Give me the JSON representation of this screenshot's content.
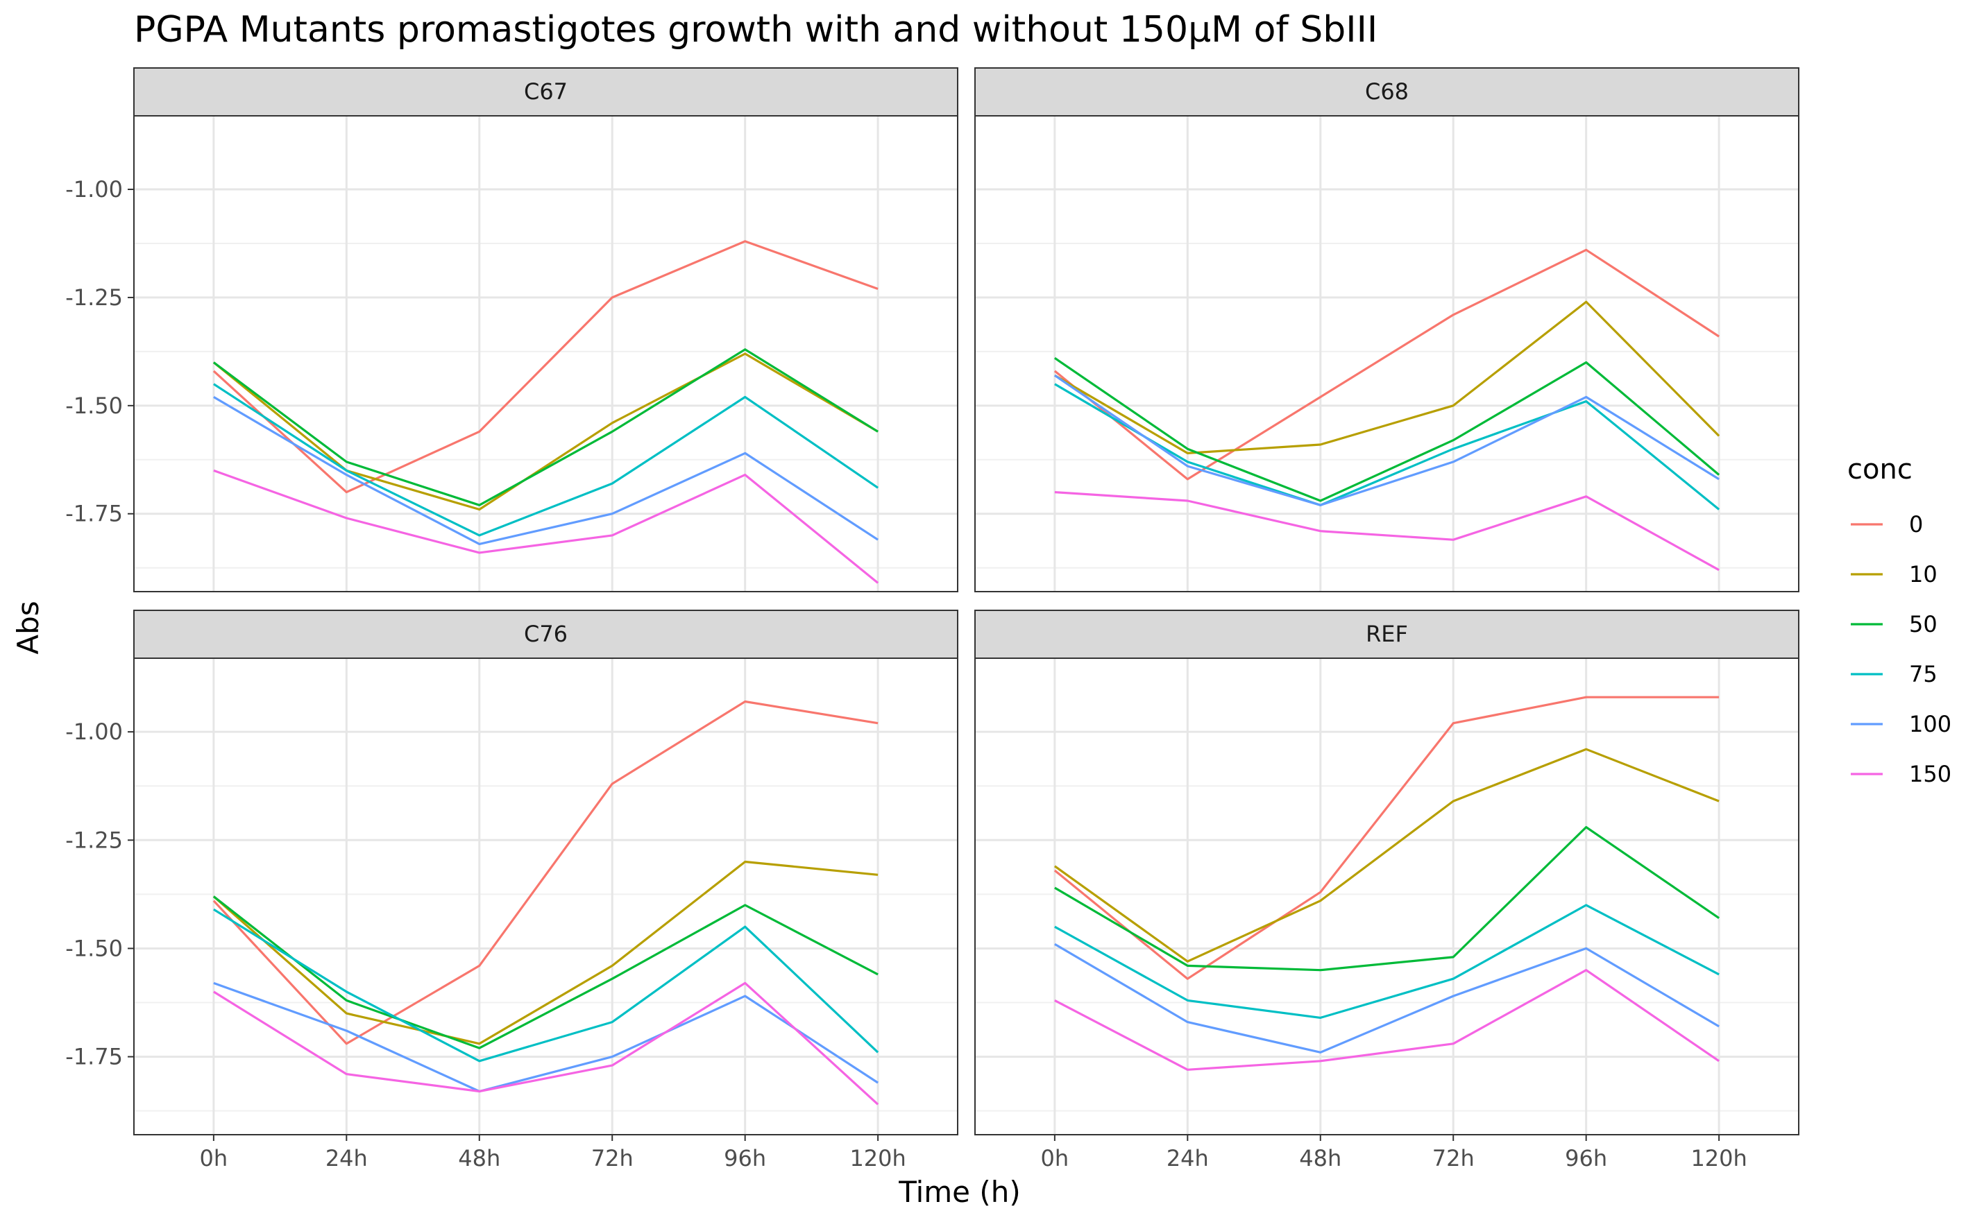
{
  "chart_data": {
    "type": "line",
    "title": "PGPA Mutants promastigotes growth with and without 150μM of SbIII",
    "xlabel": "Time (h)",
    "ylabel": "Abs",
    "x": [
      "0h",
      "24h",
      "48h",
      "72h",
      "96h",
      "120h"
    ],
    "ylim": [
      -1.93,
      -0.83
    ],
    "yticks": [
      -1.0,
      -1.25,
      -1.5,
      -1.75
    ],
    "ytick_labels": [
      "-1.00",
      "-1.25",
      "-1.50",
      "-1.75"
    ],
    "grid": true,
    "legend": {
      "title": "conc",
      "position": "right"
    },
    "series_meta": [
      {
        "name": "0",
        "color": "#F8766D"
      },
      {
        "name": "10",
        "color": "#B79F00"
      },
      {
        "name": "50",
        "color": "#00BA38"
      },
      {
        "name": "75",
        "color": "#00BFC4"
      },
      {
        "name": "100",
        "color": "#619CFF"
      },
      {
        "name": "150",
        "color": "#F564E3"
      }
    ],
    "panels": [
      {
        "name": "C67",
        "series": [
          {
            "name": "0",
            "values": [
              -1.42,
              -1.7,
              -1.56,
              -1.25,
              -1.12,
              -1.23
            ]
          },
          {
            "name": "10",
            "values": [
              -1.4,
              -1.65,
              -1.74,
              -1.54,
              -1.38,
              -1.56
            ]
          },
          {
            "name": "50",
            "values": [
              -1.4,
              -1.63,
              -1.73,
              -1.56,
              -1.37,
              -1.56
            ]
          },
          {
            "name": "75",
            "values": [
              -1.45,
              -1.65,
              -1.8,
              -1.68,
              -1.48,
              -1.69
            ]
          },
          {
            "name": "100",
            "values": [
              -1.48,
              -1.66,
              -1.82,
              -1.75,
              -1.61,
              -1.81
            ]
          },
          {
            "name": "150",
            "values": [
              -1.65,
              -1.76,
              -1.84,
              -1.8,
              -1.66,
              -1.91
            ]
          }
        ]
      },
      {
        "name": "C68",
        "series": [
          {
            "name": "0",
            "values": [
              -1.42,
              -1.67,
              -1.48,
              -1.29,
              -1.14,
              -1.34
            ]
          },
          {
            "name": "10",
            "values": [
              -1.43,
              -1.61,
              -1.59,
              -1.5,
              -1.26,
              -1.57
            ]
          },
          {
            "name": "50",
            "values": [
              -1.39,
              -1.6,
              -1.72,
              -1.58,
              -1.4,
              -1.66
            ]
          },
          {
            "name": "75",
            "values": [
              -1.45,
              -1.63,
              -1.73,
              -1.6,
              -1.49,
              -1.74
            ]
          },
          {
            "name": "100",
            "values": [
              -1.43,
              -1.64,
              -1.73,
              -1.63,
              -1.48,
              -1.67
            ]
          },
          {
            "name": "150",
            "values": [
              -1.7,
              -1.72,
              -1.79,
              -1.81,
              -1.71,
              -1.88
            ]
          }
        ]
      },
      {
        "name": "C76",
        "series": [
          {
            "name": "0",
            "values": [
              -1.39,
              -1.72,
              -1.54,
              -1.12,
              -0.93,
              -0.98
            ]
          },
          {
            "name": "10",
            "values": [
              -1.38,
              -1.65,
              -1.72,
              -1.54,
              -1.3,
              -1.33
            ]
          },
          {
            "name": "50",
            "values": [
              -1.38,
              -1.62,
              -1.73,
              -1.57,
              -1.4,
              -1.56
            ]
          },
          {
            "name": "75",
            "values": [
              -1.41,
              -1.6,
              -1.76,
              -1.67,
              -1.45,
              -1.74
            ]
          },
          {
            "name": "100",
            "values": [
              -1.58,
              -1.69,
              -1.83,
              -1.75,
              -1.61,
              -1.81
            ]
          },
          {
            "name": "150",
            "values": [
              -1.6,
              -1.79,
              -1.83,
              -1.77,
              -1.58,
              -1.86
            ]
          }
        ]
      },
      {
        "name": "REF",
        "series": [
          {
            "name": "0",
            "values": [
              -1.32,
              -1.57,
              -1.37,
              -0.98,
              -0.92,
              -0.92
            ]
          },
          {
            "name": "10",
            "values": [
              -1.31,
              -1.53,
              -1.39,
              -1.16,
              -1.04,
              -1.16
            ]
          },
          {
            "name": "50",
            "values": [
              -1.36,
              -1.54,
              -1.55,
              -1.52,
              -1.22,
              -1.43
            ]
          },
          {
            "name": "75",
            "values": [
              -1.45,
              -1.62,
              -1.66,
              -1.57,
              -1.4,
              -1.56
            ]
          },
          {
            "name": "100",
            "values": [
              -1.49,
              -1.67,
              -1.74,
              -1.61,
              -1.5,
              -1.68
            ]
          },
          {
            "name": "150",
            "values": [
              -1.62,
              -1.78,
              -1.76,
              -1.72,
              -1.55,
              -1.76
            ]
          }
        ]
      }
    ]
  }
}
